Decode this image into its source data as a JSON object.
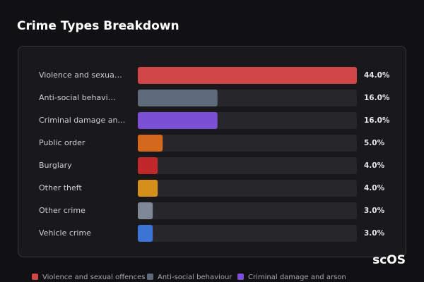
{
  "chart_data": {
    "type": "hbar",
    "title": "Crime Types Breakdown",
    "categories": [
      "Violence and sexua…",
      "Anti-social behavi…",
      "Criminal damage an…",
      "Public order",
      "Burglary",
      "Other theft",
      "Other crime",
      "Vehicle crime"
    ],
    "values": [
      44,
      16,
      16,
      5,
      4,
      4,
      3,
      3
    ],
    "value_labels": [
      "44.0%",
      "16.0%",
      "16.0%",
      "5.0%",
      "4.0%",
      "4.0%",
      "3.0%",
      "3.0%"
    ],
    "colors": [
      "#d04545",
      "#5f6b7a",
      "#7b50d6",
      "#d4691e",
      "#c0282b",
      "#d4901a",
      "#7f8896",
      "#3b74d4"
    ],
    "xlim": [
      0,
      44
    ],
    "legend": [
      {
        "name": "Violence and sexual offences",
        "color": "#d04545"
      },
      {
        "name": "Anti-social behaviour",
        "color": "#5f6b7a"
      },
      {
        "name": "Criminal damage and arson",
        "color": "#7b50d6"
      }
    ],
    "watermark": "scOS"
  }
}
